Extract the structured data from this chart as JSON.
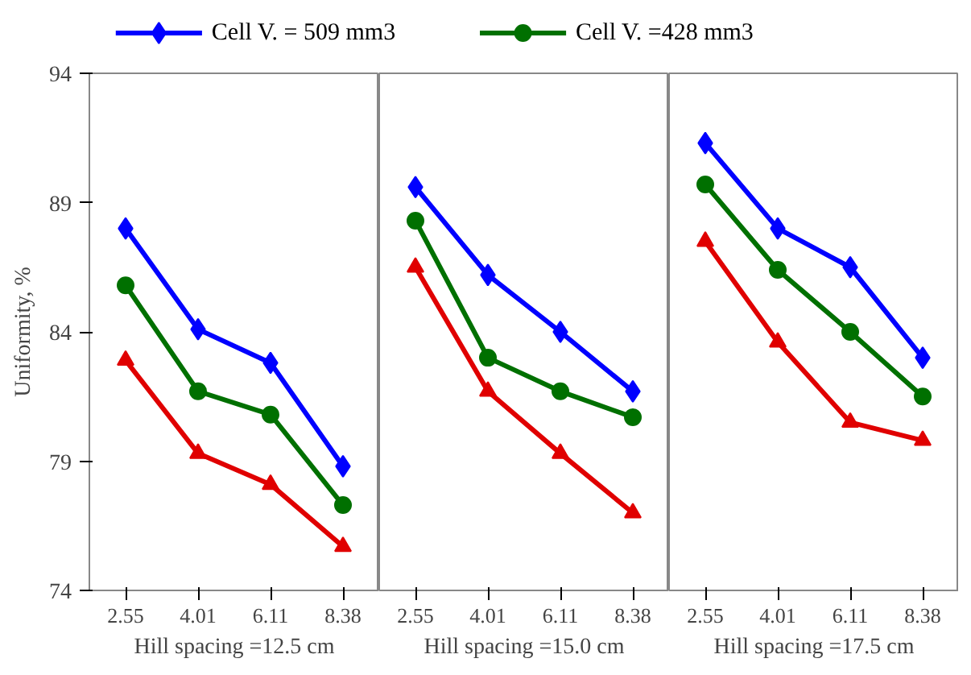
{
  "chart_data": [
    {
      "type": "line",
      "xlabel": "Hill spacing =12.5 cm",
      "ylabel": "Uniformity, %",
      "categories": [
        "2.55",
        "4.01",
        "6.11",
        "8.38"
      ],
      "ylim": [
        74,
        94
      ],
      "yticks": [
        74,
        79,
        84,
        89,
        94
      ],
      "legend": "top",
      "grid": false,
      "series": [
        {
          "name": "Cell V. = 509 mm3",
          "color": "#0000ff",
          "marker": "diamond",
          "values": [
            88.0,
            84.1,
            82.8,
            78.8
          ]
        },
        {
          "name": "Cell V. =428 mm3",
          "color": "#007000",
          "marker": "circle",
          "values": [
            85.8,
            81.7,
            80.8,
            77.3
          ]
        },
        {
          "color": "#e00000",
          "marker": "triangle",
          "values": [
            82.9,
            79.3,
            78.1,
            75.7
          ]
        }
      ]
    },
    {
      "type": "line",
      "xlabel": "Hill spacing =15.0 cm",
      "categories": [
        "2.55",
        "4.01",
        "6.11",
        "8.38"
      ],
      "ylim": [
        74,
        94
      ],
      "yticks": [
        74,
        79,
        84,
        89,
        94
      ],
      "tick_labels": "x",
      "grid": false,
      "series": [
        {
          "color": "#0000ff",
          "marker": "diamond",
          "values": [
            89.6,
            86.2,
            84.0,
            81.7
          ]
        },
        {
          "color": "#007000",
          "marker": "circle",
          "values": [
            88.3,
            83.0,
            81.7,
            80.7
          ]
        },
        {
          "color": "#e00000",
          "marker": "triangle",
          "values": [
            86.5,
            81.7,
            79.3,
            77.0
          ]
        }
      ]
    },
    {
      "type": "line",
      "xlabel": "Hill spacing =17.5 cm",
      "categories": [
        "2.55",
        "4.01",
        "6.11",
        "8.38"
      ],
      "ylim": [
        74,
        94
      ],
      "yticks": [
        74,
        79,
        84,
        89,
        94
      ],
      "tick_labels": "x",
      "grid": false,
      "series": [
        {
          "color": "#0000ff",
          "marker": "diamond",
          "values": [
            91.3,
            88.0,
            86.5,
            83.0
          ]
        },
        {
          "color": "#007000",
          "marker": "circle",
          "values": [
            89.7,
            86.4,
            84.0,
            81.5
          ]
        },
        {
          "color": "#e00000",
          "marker": "triangle",
          "values": [
            87.5,
            83.6,
            80.5,
            79.8
          ]
        }
      ]
    }
  ]
}
